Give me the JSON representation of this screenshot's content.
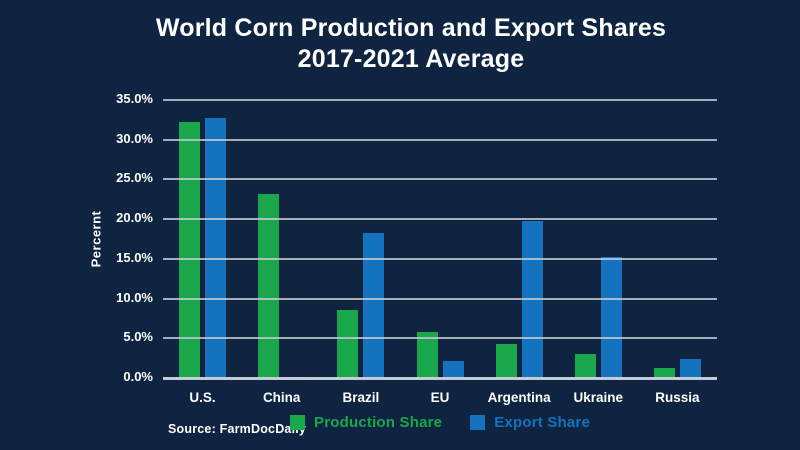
{
  "title": {
    "line1": "World Corn Production and Export Shares",
    "line2": "2017-2021 Average"
  },
  "source": "Source: FarmDocDaily",
  "colors": {
    "background": "#0f2441",
    "title_text": "#ffffff",
    "axis_text": "#ffffff",
    "gridline": "#c6ccd6",
    "production_green": "#1aa64a",
    "export_blue": "#1472be"
  },
  "chart_data": {
    "type": "bar",
    "title": "World Corn Production and Export Shares 2017-2021 Average",
    "xlabel": "",
    "ylabel": "Percernt",
    "ylim": [
      0,
      35
    ],
    "yticks": [
      "35.0%",
      "30.0%",
      "25.0%",
      "20.0%",
      "15.0%",
      "10.0%",
      "5.0%",
      "0.0%"
    ],
    "grid": true,
    "legend_position": "bottom",
    "categories": [
      "U.S.",
      "China",
      "Brazil",
      "EU",
      "Argentina",
      "Ukraine",
      "Russia"
    ],
    "series": [
      {
        "name": "Production Share",
        "color": "#1aa64a",
        "values": [
          32.2,
          23.2,
          8.6,
          5.8,
          4.3,
          3.0,
          1.2
        ]
      },
      {
        "name": "Export Share",
        "color": "#1472be",
        "values": [
          32.7,
          0.1,
          18.3,
          2.2,
          19.8,
          15.2,
          2.4
        ]
      }
    ]
  }
}
